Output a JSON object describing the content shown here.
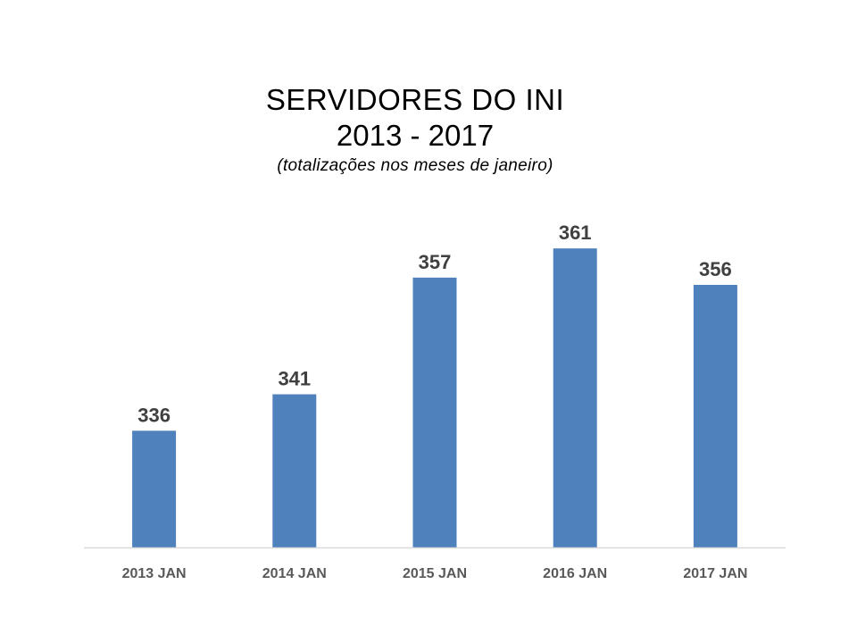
{
  "chart_data": {
    "type": "bar",
    "title": "SERVIDORES DO INI",
    "subtitle": "2013 - 2017",
    "note": "(totalizações nos meses de janeiro)",
    "categories": [
      "2013 JAN",
      "2014 JAN",
      "2015 JAN",
      "2016 JAN",
      "2017 JAN"
    ],
    "values": [
      336,
      341,
      357,
      361,
      356
    ],
    "data_labels": [
      "336",
      "341",
      "357",
      "361",
      "356"
    ],
    "xlabel": "",
    "ylabel": "",
    "ylim": [
      320,
      362
    ],
    "y_axis_visible": false,
    "grid": false,
    "legend": "none",
    "colors": {
      "bar": "#4F81BD",
      "axis": "#D9D9D9",
      "label": "#404040",
      "tick": "#595959"
    }
  }
}
